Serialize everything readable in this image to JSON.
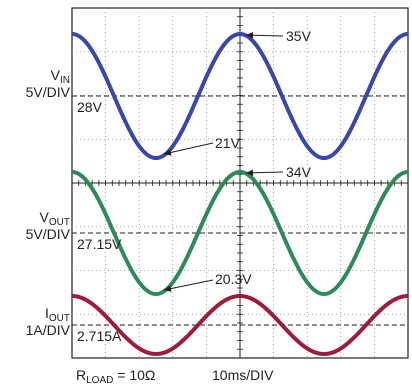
{
  "chart_data": {
    "type": "line",
    "title": "",
    "grid": true,
    "x_axis": {
      "scale_label": "10ms/DIV",
      "divisions": 10
    },
    "y_axis": {
      "divisions": 8
    },
    "series": [
      {
        "name": "V_IN",
        "label_main": "V",
        "label_sub": "IN",
        "scale_label": "5V/DIV",
        "color": "#3a47a8",
        "offset_value": "28V",
        "peak": 35,
        "trough": 21,
        "unit": "V",
        "peak_time_ms": 50,
        "period_ms": 50,
        "time_ms": [
          0,
          12.5,
          25,
          37.5,
          50,
          62.5,
          75,
          87.5,
          100
        ],
        "values": [
          35,
          28,
          21,
          28,
          35,
          28,
          21,
          28,
          35
        ]
      },
      {
        "name": "V_OUT",
        "label_main": "V",
        "label_sub": "OUT",
        "scale_label": "5V/DIV",
        "color": "#2e8b57",
        "offset_value": "27.15V",
        "peak": 34,
        "trough": 20.3,
        "unit": "V",
        "peak_time_ms": 50,
        "period_ms": 50,
        "time_ms": [
          0,
          12.5,
          25,
          37.5,
          50,
          62.5,
          75,
          87.5,
          100
        ],
        "values": [
          34,
          27.15,
          20.3,
          27.15,
          34,
          27.15,
          20.3,
          27.15,
          34
        ]
      },
      {
        "name": "I_OUT",
        "label_main": "I",
        "label_sub": "OUT",
        "scale_label": "1A/DIV",
        "color": "#9e1b3a",
        "offset_value": "2.715A",
        "peak": 3.4,
        "trough": 2.03,
        "unit": "A",
        "peak_time_ms": 50,
        "period_ms": 50,
        "time_ms": [
          0,
          12.5,
          25,
          37.5,
          50,
          62.5,
          75,
          87.5,
          100
        ],
        "values": [
          3.4,
          2.715,
          2.03,
          2.715,
          3.4,
          2.715,
          2.03,
          2.715,
          3.4
        ]
      }
    ],
    "annotations": [
      "35V",
      "21V",
      "34V",
      "20.3V"
    ],
    "footer": {
      "load_main": "R",
      "load_sub": "LOAD",
      "load_value": " = 10Ω"
    }
  }
}
